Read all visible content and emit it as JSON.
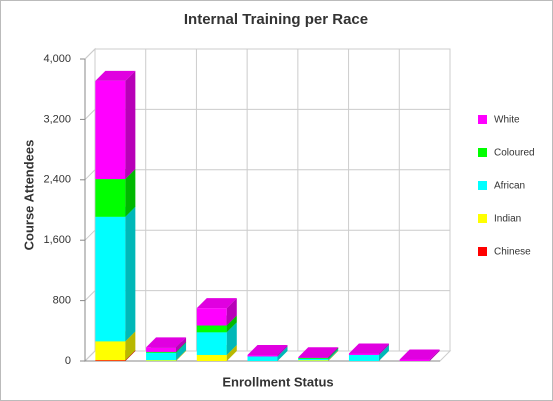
{
  "chart_data": {
    "type": "bar3d_stacked",
    "title": "Internal Training per Race",
    "x_label": "Enrollment Status",
    "y_label": "Course Attendees",
    "categories": [
      null,
      null,
      null,
      null,
      null,
      null,
      null
    ],
    "series": [
      {
        "name": "Chinese",
        "color": "#ff0000",
        "values": [
          10,
          0,
          0,
          0,
          0,
          0,
          0
        ]
      },
      {
        "name": "Indian",
        "color": "#ffff00",
        "values": [
          250,
          10,
          80,
          0,
          10,
          0,
          0
        ]
      },
      {
        "name": "African",
        "color": "#00ffff",
        "values": [
          1650,
          100,
          300,
          60,
          20,
          80,
          0
        ]
      },
      {
        "name": "Coloured",
        "color": "#00ff00",
        "values": [
          500,
          10,
          90,
          0,
          10,
          0,
          0
        ]
      },
      {
        "name": "White",
        "color": "#ff00ff",
        "values": [
          1300,
          60,
          230,
          20,
          10,
          20,
          20
        ]
      }
    ],
    "ylim": [
      0,
      4000
    ],
    "yticks": [
      0,
      {
        "value": 800,
        "label": "800"
      },
      {
        "value": 1600,
        "label": "1,600"
      },
      {
        "value": 2400,
        "label": "2,400"
      },
      {
        "value": 3200,
        "label": "3,200"
      },
      {
        "value": 4000,
        "label": "4,000"
      }
    ],
    "grid": true,
    "legend": "right"
  }
}
